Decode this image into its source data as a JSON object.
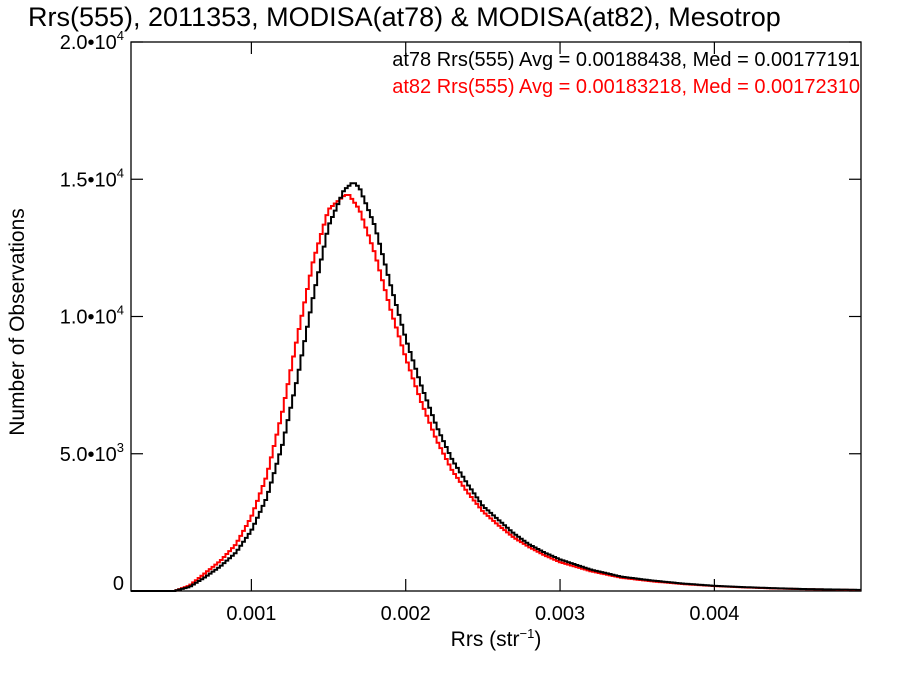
{
  "chart_data": {
    "type": "line",
    "title": "Rrs(555), 2011353, MODISA(at78) & MODISA(at82), Mesotrop",
    "xlabel": "Rrs (str",
    "xlabel_sup": "−1",
    "xlabel_close": ")",
    "ylabel": "Number of Observations",
    "xlim": [
      0.00022,
      0.00495
    ],
    "ylim": [
      0,
      20000
    ],
    "xticks": [
      {
        "value": 0.001,
        "label": "0.001"
      },
      {
        "value": 0.002,
        "label": "0.002"
      },
      {
        "value": 0.003,
        "label": "0.003"
      },
      {
        "value": 0.004,
        "label": "0.004"
      }
    ],
    "yticks": [
      {
        "value": 0,
        "mant": "0",
        "exp": ""
      },
      {
        "value": 5000,
        "mant": "5.0•10",
        "exp": "3"
      },
      {
        "value": 10000,
        "mant": "1.0•10",
        "exp": "4"
      },
      {
        "value": 15000,
        "mant": "1.5•10",
        "exp": "4"
      },
      {
        "value": 20000,
        "mant": "2.0•10",
        "exp": "4"
      }
    ],
    "legend": [
      {
        "text": "at78 Rrs(555) Avg = 0.00188438, Med = 0.00177191",
        "color": "#000000"
      },
      {
        "text": "at82 Rrs(555) Avg = 0.00183218, Med = 0.00172310",
        "color": "#ff0000"
      }
    ],
    "series": [
      {
        "color": "#000000",
        "x": [
          0.00022,
          0.0005,
          0.0006,
          0.0007,
          0.0008,
          0.0009,
          0.001,
          0.0011,
          0.0012,
          0.0013,
          0.0014,
          0.0015,
          0.0016,
          0.00166,
          0.0017,
          0.0018,
          0.0019,
          0.002,
          0.0021,
          0.0022,
          0.0023,
          0.0024,
          0.0025,
          0.0026,
          0.0027,
          0.0028,
          0.0029,
          0.003,
          0.0032,
          0.0034,
          0.0036,
          0.0038,
          0.004,
          0.0042,
          0.0044,
          0.0046,
          0.00495
        ],
        "y": [
          0,
          0,
          150,
          500,
          900,
          1400,
          2200,
          3400,
          5300,
          7800,
          10700,
          13300,
          14600,
          14900,
          14700,
          13300,
          11200,
          9200,
          7500,
          6000,
          4800,
          3900,
          3100,
          2600,
          2100,
          1700,
          1400,
          1150,
          780,
          520,
          380,
          270,
          190,
          140,
          100,
          70,
          40
        ]
      },
      {
        "color": "#ff0000",
        "x": [
          0.00022,
          0.0005,
          0.0006,
          0.0007,
          0.0008,
          0.0009,
          0.001,
          0.0011,
          0.0012,
          0.0013,
          0.0014,
          0.0015,
          0.0016,
          0.00163,
          0.0017,
          0.0018,
          0.0019,
          0.002,
          0.0021,
          0.0022,
          0.0023,
          0.0024,
          0.0025,
          0.0026,
          0.0027,
          0.0028,
          0.0029,
          0.003,
          0.0032,
          0.0034,
          0.0036,
          0.0038,
          0.004,
          0.0042,
          0.0044,
          0.0046,
          0.00495
        ],
        "y": [
          0,
          0,
          200,
          650,
          1100,
          1700,
          2700,
          4200,
          6500,
          9300,
          12000,
          13900,
          14400,
          14450,
          13900,
          12300,
          10300,
          8500,
          6900,
          5500,
          4400,
          3600,
          2900,
          2400,
          1950,
          1600,
          1300,
          1050,
          720,
          480,
          350,
          250,
          180,
          130,
          90,
          65,
          35
        ]
      }
    ]
  }
}
